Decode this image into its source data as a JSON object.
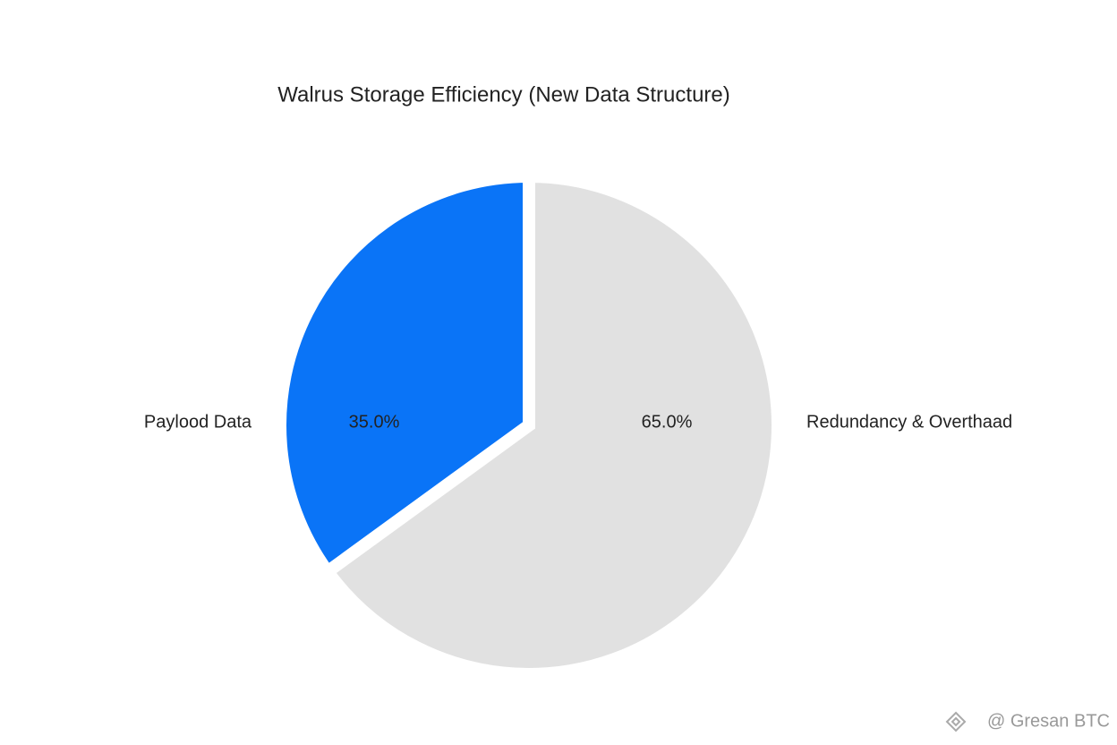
{
  "chart_data": {
    "type": "pie",
    "title": "Walrus Storage Efficiency (New Data Structure)",
    "categories": [
      "Paylood Data",
      "Redundancy & Overthaad"
    ],
    "values": [
      35,
      65
    ],
    "value_labels": [
      "35.0%",
      "65.0%"
    ],
    "colors": [
      "#0a74f7",
      "#e1e1e1"
    ]
  },
  "watermark": "@ Gresan BTC"
}
